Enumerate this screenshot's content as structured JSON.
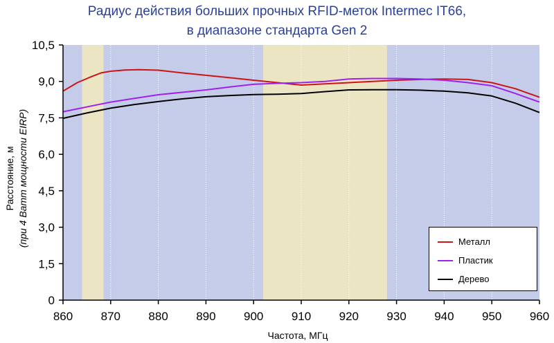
{
  "chart_data": {
    "type": "line",
    "title": "Радиус действия больших прочных RFID-меток Intermec IT66,",
    "subtitle": "в диапазоне стандарта Gen 2",
    "xlabel": "Частота, МГц",
    "ylabel_line1": "Расстояние, м",
    "ylabel_line2": "(при 4 Ватт мощности EIRP)",
    "xlim": [
      860,
      960
    ],
    "ylim": [
      0,
      10.5
    ],
    "x_ticks": [
      "860",
      "870",
      "880",
      "890",
      "900",
      "910",
      "920",
      "930",
      "940",
      "950",
      "960"
    ],
    "y_ticks": [
      "0",
      "1,5",
      "3,0",
      "4,5",
      "6,0",
      "7,5",
      "9,0",
      "10,5"
    ],
    "y_tick_values": [
      0,
      1.5,
      3.0,
      4.5,
      6.0,
      7.5,
      9.0,
      10.5
    ],
    "x_tick_values": [
      860,
      870,
      880,
      890,
      900,
      910,
      920,
      930,
      940,
      950,
      960
    ],
    "grid": "vertical",
    "legend_position": "bottom-right",
    "background_color": "#c5cce9",
    "band_color": "#ece5c4",
    "bands": [
      [
        864,
        868.5
      ],
      [
        902,
        928
      ]
    ],
    "series": [
      {
        "name": "Металл",
        "color": "#cc1414",
        "x": [
          860,
          863,
          866,
          868,
          870,
          873,
          876,
          880,
          885,
          890,
          895,
          900,
          905,
          910,
          915,
          920,
          925,
          930,
          935,
          940,
          945,
          950,
          955,
          960
        ],
        "y": [
          8.6,
          8.95,
          9.2,
          9.35,
          9.42,
          9.47,
          9.48,
          9.46,
          9.35,
          9.25,
          9.15,
          9.05,
          8.95,
          8.85,
          8.9,
          8.95,
          9.0,
          9.05,
          9.08,
          9.1,
          9.08,
          8.95,
          8.7,
          8.35
        ]
      },
      {
        "name": "Пластик",
        "color": "#a020f0",
        "x": [
          860,
          865,
          870,
          875,
          880,
          885,
          890,
          895,
          900,
          905,
          910,
          915,
          920,
          925,
          930,
          935,
          940,
          945,
          950,
          955,
          960
        ],
        "y": [
          7.75,
          7.95,
          8.15,
          8.3,
          8.45,
          8.55,
          8.65,
          8.77,
          8.88,
          8.92,
          8.95,
          9.0,
          9.1,
          9.12,
          9.12,
          9.1,
          9.05,
          8.95,
          8.82,
          8.5,
          8.15
        ]
      },
      {
        "name": "Дерево",
        "color": "#000000",
        "x": [
          860,
          865,
          870,
          875,
          880,
          885,
          890,
          895,
          900,
          905,
          910,
          915,
          920,
          925,
          930,
          935,
          940,
          945,
          950,
          955,
          960
        ],
        "y": [
          7.48,
          7.7,
          7.9,
          8.05,
          8.17,
          8.28,
          8.37,
          8.42,
          8.46,
          8.47,
          8.5,
          8.58,
          8.65,
          8.66,
          8.66,
          8.64,
          8.6,
          8.53,
          8.4,
          8.1,
          7.72
        ]
      }
    ]
  }
}
